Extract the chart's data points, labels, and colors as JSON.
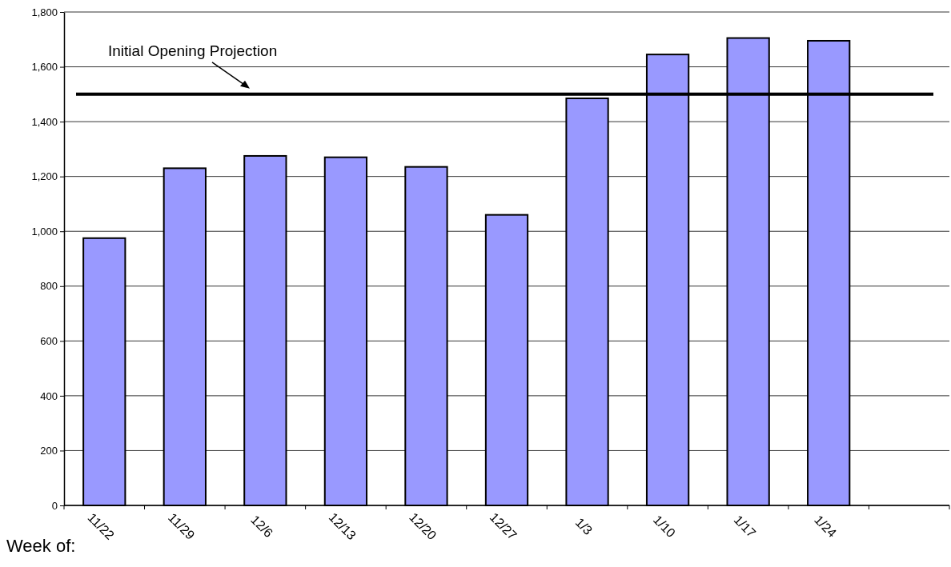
{
  "chart_data": {
    "type": "bar",
    "xlabel": "Week of:",
    "categories": [
      "11/22",
      "11/29",
      "12/6",
      "12/13",
      "12/20",
      "12/27",
      "1/3",
      "1/10",
      "1/17",
      "1/24",
      null
    ],
    "values": [
      975,
      1230,
      1275,
      1270,
      1235,
      1060,
      1485,
      1645,
      1705,
      1695,
      null
    ],
    "color": "#9999ff",
    "ylim": [
      0,
      1800
    ],
    "yticks": [
      {
        "value": 0,
        "label": "0"
      },
      {
        "value": 200,
        "label": "200"
      },
      {
        "value": 400,
        "label": "400"
      },
      {
        "value": 600,
        "label": "600"
      },
      {
        "value": 800,
        "label": "800"
      },
      {
        "value": 1000,
        "label": "1,000"
      },
      {
        "value": 1200,
        "label": "1,200"
      },
      {
        "value": 1400,
        "label": "1,400"
      },
      {
        "value": 1600,
        "label": "1,600"
      },
      {
        "value": 1800,
        "label": "1,800"
      }
    ],
    "grid": "y",
    "ref_lines": [
      {
        "axis": "y",
        "value": 1500,
        "label": "Initial Opening Projection",
        "color": "#000000"
      }
    ]
  }
}
